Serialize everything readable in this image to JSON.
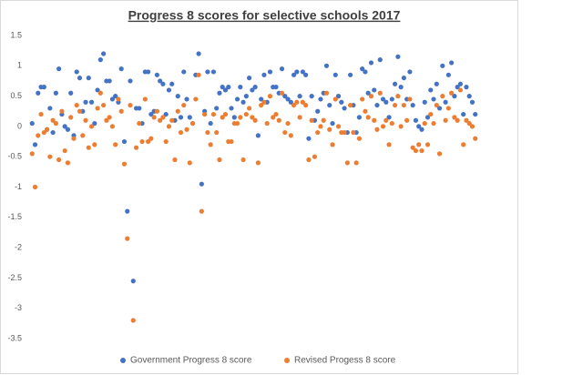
{
  "chart_data": {
    "type": "scatter",
    "title": "Progress 8 scores for selective schools 2017",
    "x": [
      1,
      2,
      3,
      4,
      5,
      6,
      7,
      8,
      9,
      10,
      11,
      12,
      13,
      14,
      15,
      16,
      17,
      18,
      19,
      20,
      21,
      22,
      23,
      24,
      25,
      26,
      27,
      28,
      29,
      30,
      31,
      32,
      33,
      34,
      35,
      36,
      37,
      38,
      39,
      40,
      41,
      42,
      43,
      44,
      45,
      46,
      47,
      48,
      49,
      50,
      51,
      52,
      53,
      54,
      55,
      56,
      57,
      58,
      59,
      60,
      61,
      62,
      63,
      64,
      65,
      66,
      67,
      68,
      69,
      70,
      71,
      72,
      73,
      74,
      75,
      76,
      77,
      78,
      79,
      80,
      81,
      82,
      83,
      84,
      85,
      86,
      87,
      88,
      89,
      90,
      91,
      92,
      93,
      94,
      95,
      96,
      97,
      98,
      99,
      100,
      101,
      102,
      103,
      104,
      105,
      106,
      107,
      108,
      109,
      110,
      111,
      112,
      113,
      114,
      115,
      116,
      117,
      118,
      119,
      120,
      121,
      122,
      123,
      124,
      125,
      126,
      127,
      128,
      129,
      130,
      131,
      132,
      133,
      134,
      135,
      136,
      137,
      138,
      139,
      140,
      141,
      142,
      143,
      144,
      145,
      146,
      147,
      148,
      149,
      150
    ],
    "xlim": [
      0,
      151
    ],
    "ylim": [
      -3.5,
      1.5
    ],
    "yticks": [
      1.5,
      1,
      0.5,
      0,
      -0.5,
      -1,
      -1.5,
      -2,
      -2.5,
      -3,
      -3.5
    ],
    "grid": false,
    "legend": "bottom",
    "series": [
      {
        "name": "Government Progress 8 score",
        "color": "#4472c4",
        "values": [
          0.05,
          -0.3,
          0.55,
          0.65,
          0.65,
          -0.05,
          0.3,
          -0.1,
          0.55,
          0.95,
          0.2,
          0.0,
          -0.05,
          0.55,
          -0.15,
          0.9,
          0.8,
          0.25,
          0.4,
          0.8,
          0.4,
          0.05,
          0.6,
          1.1,
          1.2,
          0.75,
          0.75,
          0.45,
          0.5,
          0.4,
          0.95,
          -0.25,
          -1.4,
          0.75,
          -2.55,
          0.3,
          0.3,
          0.05,
          0.9,
          0.9,
          0.2,
          0.25,
          0.85,
          0.75,
          0.7,
          0.2,
          0.6,
          0.7,
          0.1,
          0.5,
          0.15,
          0.9,
          0.45,
          0.15,
          0.05,
          0.85,
          1.2,
          -0.95,
          0.25,
          0.9,
          0.05,
          0.9,
          0.3,
          0.55,
          0.65,
          0.6,
          0.65,
          0.3,
          0.15,
          0.45,
          0.65,
          0.4,
          0.5,
          0.8,
          0.6,
          0.65,
          -0.15,
          0.45,
          0.85,
          0.4,
          0.9,
          0.65,
          0.65,
          0.55,
          0.95,
          0.5,
          0.45,
          0.4,
          0.85,
          0.9,
          0.5,
          0.9,
          0.85,
          -0.2,
          0.5,
          0.1,
          0.25,
          0.45,
          0.55,
          1.0,
          0.35,
          0.05,
          0.85,
          0.5,
          0.4,
          0.3,
          -0.1,
          0.85,
          0.35,
          -0.1,
          0.15,
          0.95,
          0.9,
          0.55,
          1.05,
          0.6,
          0.35,
          1.1,
          0.45,
          0.4,
          0.15,
          0.45,
          0.7,
          1.15,
          0.65,
          0.8,
          0.45,
          0.9,
          0.35,
          0.1,
          0.0,
          -0.05,
          0.4,
          0.15,
          0.6,
          0.45,
          0.7,
          0.3,
          1.0,
          0.4,
          0.85,
          1.05,
          0.5,
          0.65,
          0.7,
          0.2,
          0.65,
          0.5,
          0.4,
          0.2
        ]
      },
      {
        "name": "Revised Progess 8 score",
        "color": "#ed7d31",
        "values": [
          -0.45,
          -1.0,
          -0.15,
          0.2,
          -0.1,
          -0.05,
          -0.5,
          0.1,
          0.05,
          -0.55,
          0.25,
          -0.4,
          -0.6,
          0.15,
          -0.2,
          0.35,
          0.25,
          -0.15,
          0.1,
          -0.35,
          0.0,
          -0.3,
          0.3,
          0.55,
          0.35,
          0.1,
          0.15,
          0.0,
          -0.3,
          0.45,
          0.25,
          -0.62,
          -1.85,
          0.35,
          -3.2,
          -0.35,
          0.05,
          -0.25,
          0.45,
          -0.25,
          -0.2,
          0.15,
          0.25,
          0.1,
          0.15,
          -0.25,
          0.0,
          0.1,
          -0.55,
          0.25,
          -0.1,
          0.35,
          -0.05,
          -0.6,
          0.05,
          0.45,
          0.85,
          -1.4,
          0.2,
          -0.1,
          -0.3,
          0.2,
          -0.1,
          -0.55,
          0.15,
          0.2,
          -0.25,
          -0.25,
          0.05,
          0.05,
          0.15,
          -0.55,
          0.2,
          0.3,
          0.15,
          0.1,
          -0.6,
          0.35,
          0.4,
          0.05,
          0.5,
          0.15,
          0.2,
          0.1,
          0.55,
          -0.1,
          0.05,
          -0.15,
          0.35,
          0.4,
          0.15,
          0.4,
          0.35,
          -0.55,
          0.1,
          -0.5,
          -0.1,
          0.0,
          0.1,
          0.55,
          -0.05,
          -0.3,
          0.45,
          0.0,
          -0.1,
          -0.1,
          -0.6,
          0.35,
          -0.1,
          -0.6,
          -0.2,
          0.45,
          0.25,
          0.15,
          0.5,
          0.1,
          -0.05,
          0.55,
          0.0,
          0.1,
          -0.3,
          0.05,
          0.35,
          0.5,
          0.0,
          0.35,
          0.1,
          0.45,
          -0.35,
          -0.4,
          -0.3,
          -0.4,
          0.05,
          -0.3,
          0.2,
          0.05,
          0.35,
          -0.45,
          0.5,
          0.1,
          0.3,
          0.55,
          0.15,
          0.1,
          0.6,
          -0.3,
          0.1,
          0.05,
          0.0,
          -0.2
        ]
      }
    ]
  }
}
